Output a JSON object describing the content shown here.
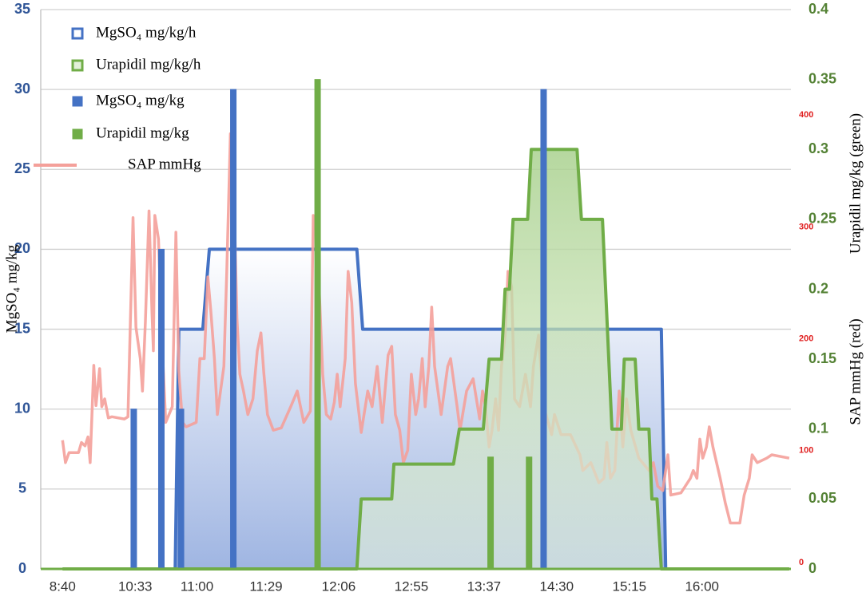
{
  "chart_data": {
    "type": "combo",
    "ylabel": "MgSO₄ mg/kg",
    "y2label": "Urapidil mg/kg (green)",
    "y3label": "SAP mmHg (red)",
    "grid": true,
    "legend": "top-left",
    "xlim": [
      -3,
      101
    ],
    "xticks": [
      {
        "value": 0,
        "label": "8:40"
      },
      {
        "value": 10,
        "label": "10:33"
      },
      {
        "value": 18.5,
        "label": "11:00"
      },
      {
        "value": 28,
        "label": "11:29"
      },
      {
        "value": 38,
        "label": "12:06"
      },
      {
        "value": 48,
        "label": "12:55"
      },
      {
        "value": 58,
        "label": "13:37"
      },
      {
        "value": 68,
        "label": "14:30"
      },
      {
        "value": 78,
        "label": "15:15"
      },
      {
        "value": 88,
        "label": "16:00"
      }
    ],
    "ylim": [
      0,
      35
    ],
    "yticks": [
      0,
      5,
      10,
      15,
      20,
      25,
      30,
      35
    ],
    "y2lim": [
      0,
      0.4
    ],
    "y2ticks": [
      0,
      0.05,
      0.1,
      0.15,
      0.2,
      0.25,
      0.3,
      0.35,
      0.4
    ],
    "y3lim": [
      0,
      500
    ],
    "y3ticks": [
      0,
      100,
      200,
      300,
      400
    ],
    "series": [
      {
        "name": "MgSO₄ mg/kg/h",
        "type": "area",
        "color": "#4472c4",
        "x": [
          15.5,
          16,
          19.3,
          20.2,
          40.5,
          41.3,
          82.4,
          83
        ],
        "values": [
          0,
          15,
          15,
          20,
          20,
          15,
          15,
          0
        ]
      },
      {
        "name": "Urapidil mg/kg/h",
        "type": "area",
        "axis": "y2",
        "color": "#70ad47",
        "x": [
          0,
          40.5,
          41.1,
          45.3,
          45.6,
          53.8,
          54.6,
          57.9,
          58.7,
          60.4,
          60.9,
          61.5,
          62,
          64,
          64.5,
          70.8,
          71.4,
          74.3,
          75.6,
          76.9,
          77.3,
          78.8,
          79.3,
          80.7,
          81.1,
          81.8,
          82.4,
          100
        ],
        "values": [
          0,
          0,
          0.05,
          0.05,
          0.075,
          0.075,
          0.1,
          0.1,
          0.15,
          0.15,
          0.2,
          0.2,
          0.25,
          0.25,
          0.3,
          0.3,
          0.25,
          0.25,
          0.1,
          0.1,
          0.15,
          0.15,
          0.1,
          0.1,
          0.05,
          0.05,
          0,
          0
        ]
      },
      {
        "name": "MgSO₄ mg/kg",
        "type": "bar",
        "color": "#4472c4",
        "x": [
          9.8,
          13.6,
          16.3,
          23.5,
          66.2
        ],
        "values": [
          10,
          20,
          10,
          30,
          30
        ]
      },
      {
        "name": "Urapidil mg/kg",
        "type": "bar",
        "axis": "y2",
        "color": "#70ad47",
        "x": [
          35.1,
          58.9,
          64.2
        ],
        "values": [
          0.35,
          0.08,
          0.08
        ]
      },
      {
        "name": "SAP mmHg",
        "type": "line",
        "axis": "y3",
        "color": "#f4a09a",
        "x": [
          0,
          0.4,
          0.9,
          2.2,
          2.6,
          3.1,
          3.5,
          3.8,
          4.3,
          4.6,
          5.1,
          5.4,
          5.8,
          6.3,
          6.8,
          8.5,
          9,
          9.7,
          10.1,
          10.7,
          11,
          11.4,
          11.9,
          12.3,
          12.5,
          12.7,
          13.2,
          13.7,
          14.2,
          15.1,
          15.6,
          16,
          16.5,
          17,
          18.4,
          18.9,
          19.5,
          20,
          20.4,
          20.9,
          21.3,
          22.2,
          22.6,
          23.1,
          23.5,
          24,
          24.4,
          24.9,
          25.5,
          26.2,
          26.8,
          27.3,
          27.7,
          28.2,
          29,
          30.1,
          31.4,
          32.3,
          33.2,
          34.1,
          34.5,
          34.9,
          35.4,
          35.8,
          36.3,
          36.9,
          37.4,
          37.8,
          38.2,
          38.9,
          39.3,
          39.8,
          40.3,
          41.1,
          42,
          42.6,
          43.3,
          44,
          44.8,
          45.3,
          45.8,
          46.4,
          46.9,
          47.5,
          48,
          48.6,
          49,
          49.5,
          49.9,
          50.4,
          50.8,
          51.2,
          52.1,
          53,
          53.4,
          54.3,
          54.7,
          55.6,
          56.5,
          57.4,
          57.8,
          58.2,
          58.7,
          59.1,
          59.6,
          60,
          60.4,
          60.9,
          61.3,
          61.8,
          62.2,
          62.9,
          63.7,
          64.4,
          64.8,
          65.5,
          65.9,
          66.4,
          67.3,
          67.7,
          68.6,
          69.9,
          71.2,
          71.6,
          72.7,
          73.8,
          74.5,
          74.9,
          75.4,
          76,
          76.6,
          77.1,
          77.6,
          78.2,
          79.3,
          80.7,
          81.3,
          81.9,
          82.6,
          83.3,
          83.7,
          85.1,
          86.4,
          86.8,
          87.3,
          87.7,
          88.1,
          88.6,
          89,
          89.5,
          90.5,
          91.2,
          91.9,
          93.2,
          93.8,
          94.5,
          94.9,
          95.6,
          96.9,
          97.6,
          100
        ],
        "values": [
          115,
          95,
          104,
          104,
          113,
          110,
          118,
          95,
          182,
          146,
          179,
          145,
          152,
          135,
          136,
          134,
          136,
          314,
          216,
          188,
          159,
          221,
          320,
          231,
          195,
          316,
          295,
          202,
          131,
          145,
          301,
          177,
          131,
          127,
          131,
          188,
          188,
          261,
          231,
          188,
          138,
          181,
          266,
          389,
          359,
          224,
          174,
          159,
          138,
          152,
          195,
          211,
          175,
          138,
          124,
          126,
          145,
          159,
          131,
          141,
          316,
          302,
          238,
          174,
          138,
          134,
          149,
          174,
          145,
          188,
          266,
          238,
          166,
          122,
          159,
          145,
          181,
          131,
          191,
          199,
          138,
          124,
          95,
          106,
          174,
          138,
          152,
          188,
          145,
          181,
          234,
          181,
          138,
          181,
          188,
          145,
          124,
          159,
          170,
          134,
          159,
          145,
          109,
          124,
          152,
          124,
          181,
          209,
          266,
          252,
          152,
          145,
          174,
          145,
          181,
          209,
          174,
          141,
          120,
          138,
          120,
          120,
          102,
          88,
          95,
          77,
          81,
          113,
          81,
          88,
          159,
          109,
          152,
          124,
          99,
          88,
          95,
          74,
          70,
          102,
          66,
          68,
          81,
          88,
          81,
          116,
          99,
          109,
          127,
          109,
          81,
          59,
          41,
          41,
          66,
          81,
          102,
          95,
          99,
          102,
          99
        ]
      }
    ]
  }
}
